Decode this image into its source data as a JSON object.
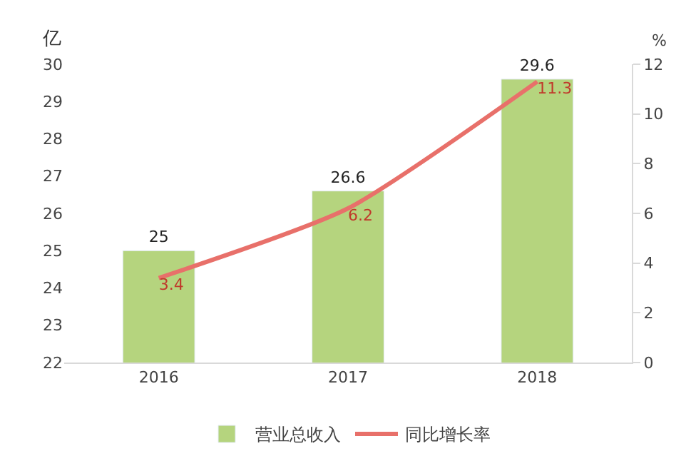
{
  "chart_data": {
    "type": "bar",
    "categories": [
      "2016",
      "2017",
      "2018"
    ],
    "ylabel": "亿",
    "y2label": "%",
    "ylim": [
      22,
      30
    ],
    "yticks": [
      22,
      23,
      24,
      25,
      26,
      27,
      28,
      29,
      30
    ],
    "y2lim": [
      0,
      12
    ],
    "y2ticks": [
      0,
      2,
      4,
      6,
      8,
      10,
      12
    ],
    "grid": false,
    "legend": "bottom",
    "series": [
      {
        "name": "营业总收入",
        "color": "#b5d47e",
        "values": [
          25,
          26.6,
          29.6
        ],
        "value_labels": [
          "25",
          "26.6",
          "29.6"
        ]
      },
      {
        "name": "同比增长率",
        "type": "line",
        "axis": "y2",
        "color": "#e8706a",
        "values": [
          3.4,
          6.2,
          11.3
        ],
        "value_labels": [
          "3.4",
          "6.2",
          "11.3"
        ]
      }
    ]
  }
}
